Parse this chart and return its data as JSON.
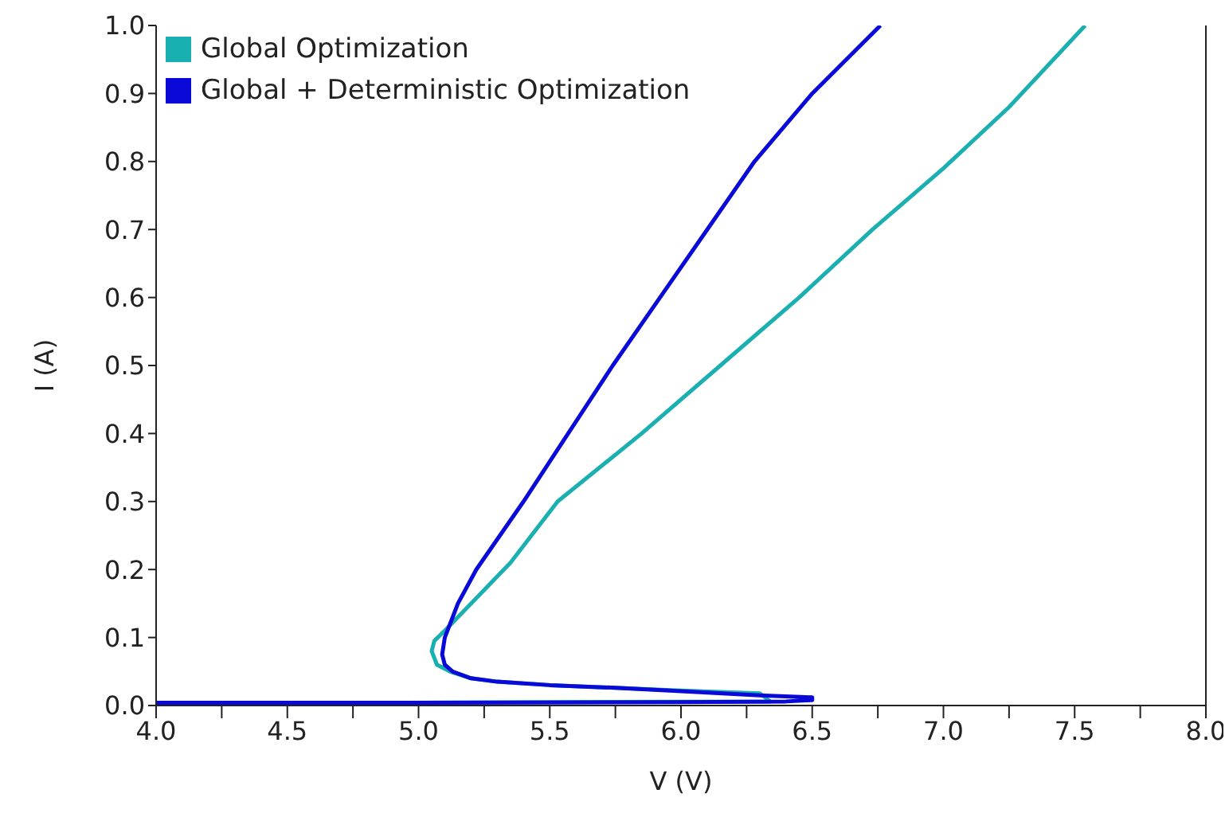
{
  "chart_data": {
    "type": "line",
    "xlabel": "V (V)",
    "ylabel": "I (A)",
    "xlim": [
      4.0,
      8.0
    ],
    "xticks": [
      {
        "value": 4.0,
        "label": "4.0"
      },
      {
        "value": 4.25,
        "label": null
      },
      {
        "value": 4.5,
        "label": "4.5"
      },
      {
        "value": 4.75,
        "label": null
      },
      {
        "value": 5.0,
        "label": "5.0"
      },
      {
        "value": 5.25,
        "label": null
      },
      {
        "value": 5.5,
        "label": "5.5"
      },
      {
        "value": 5.75,
        "label": null
      },
      {
        "value": 6.0,
        "label": "6.0"
      },
      {
        "value": 6.25,
        "label": null
      },
      {
        "value": 6.5,
        "label": "6.5"
      },
      {
        "value": 6.75,
        "label": null
      },
      {
        "value": 7.0,
        "label": "7.0"
      },
      {
        "value": 7.25,
        "label": null
      },
      {
        "value": 7.5,
        "label": "7.5"
      },
      {
        "value": 7.75,
        "label": null
      },
      {
        "value": 8.0,
        "label": "8.0"
      }
    ],
    "ylim": [
      0.0,
      1.0
    ],
    "yticks": [
      {
        "value": 0.0,
        "label": "0.0"
      },
      {
        "value": 0.1,
        "label": "0.1"
      },
      {
        "value": 0.2,
        "label": "0.2"
      },
      {
        "value": 0.3,
        "label": "0.3"
      },
      {
        "value": 0.4,
        "label": "0.4"
      },
      {
        "value": 0.5,
        "label": "0.5"
      },
      {
        "value": 0.6,
        "label": "0.6"
      },
      {
        "value": 0.7,
        "label": "0.7"
      },
      {
        "value": 0.8,
        "label": "0.8"
      },
      {
        "value": 0.9,
        "label": "0.9"
      },
      {
        "value": 1.0,
        "label": "1.0"
      }
    ],
    "grid": false,
    "legend": "top left",
    "marker": "none",
    "line_style": "solid",
    "series": [
      {
        "name": "Global Optimization",
        "color": "#1aafb0",
        "x": [
          4.0,
          6.34,
          6.3,
          6.0,
          5.75,
          5.5,
          5.3,
          5.2,
          5.12,
          5.07,
          5.05,
          5.06,
          5.1,
          5.2,
          5.35,
          5.53,
          5.85,
          6.15,
          6.45,
          6.73,
          7.0,
          7.25,
          7.54
        ],
        "values": [
          0.003,
          0.006,
          0.018,
          0.022,
          0.026,
          0.03,
          0.035,
          0.04,
          0.05,
          0.06,
          0.08,
          0.095,
          0.11,
          0.15,
          0.21,
          0.3,
          0.4,
          0.5,
          0.6,
          0.7,
          0.79,
          0.88,
          1.0
        ]
      },
      {
        "name": "Global + Deterministic Optimization",
        "color": "#0a0ad8",
        "x": [
          4.0,
          5.0,
          6.0,
          6.4,
          6.5,
          6.5,
          6.3,
          6.0,
          5.75,
          5.5,
          5.3,
          5.2,
          5.13,
          5.1,
          5.09,
          5.1,
          5.15,
          5.22,
          5.4,
          5.57,
          5.74,
          5.92,
          6.1,
          6.28,
          6.5,
          6.76
        ],
        "values": [
          0.004,
          0.004,
          0.005,
          0.006,
          0.008,
          0.012,
          0.015,
          0.021,
          0.026,
          0.03,
          0.035,
          0.04,
          0.05,
          0.06,
          0.075,
          0.1,
          0.15,
          0.2,
          0.3,
          0.4,
          0.5,
          0.6,
          0.7,
          0.8,
          0.9,
          1.0
        ]
      }
    ]
  }
}
